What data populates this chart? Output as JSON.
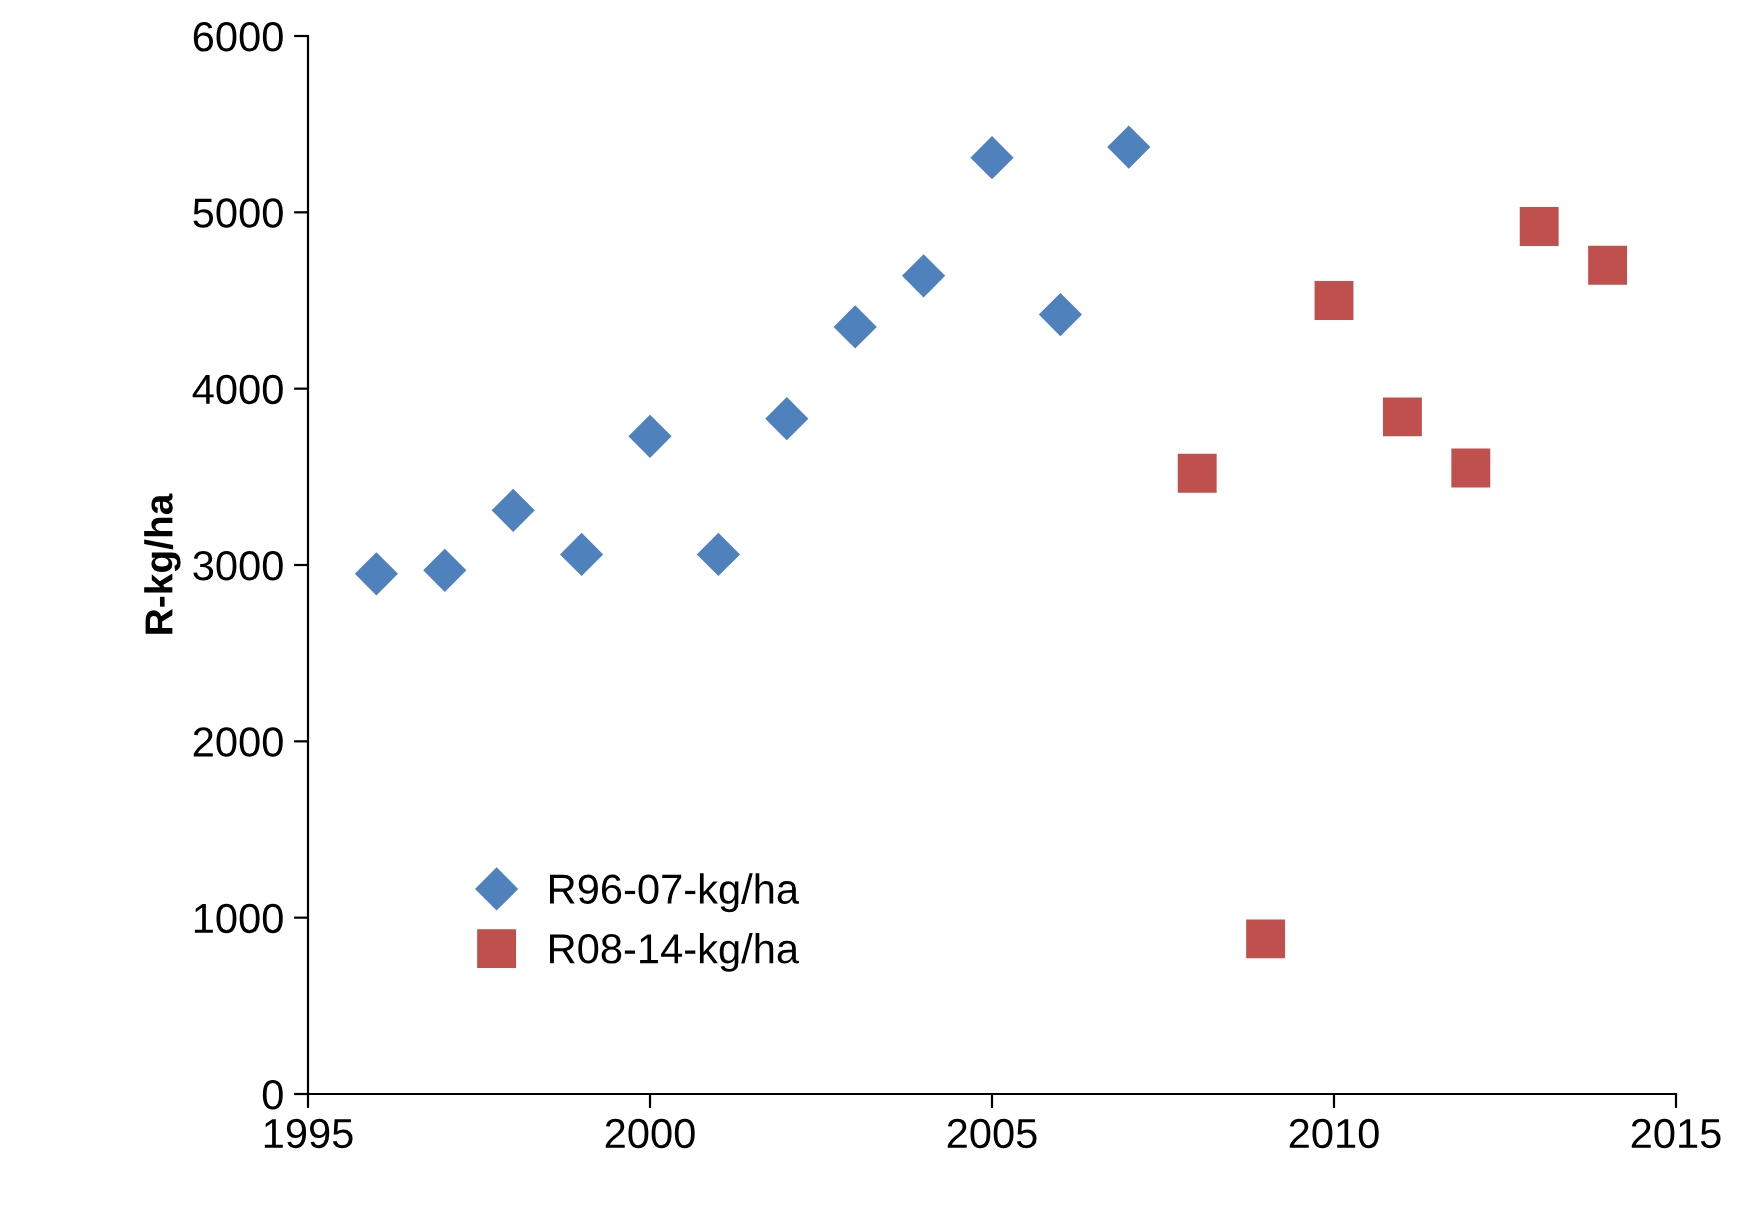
{
  "chart_data": {
    "type": "scatter",
    "ylabel": "R-kg/ha",
    "xlim": [
      1995,
      2015
    ],
    "xticks": [
      1995,
      2000,
      2005,
      2010,
      2015
    ],
    "ylim": [
      0,
      6000
    ],
    "yticks": [
      0,
      1000,
      2000,
      3000,
      4000,
      5000,
      6000
    ],
    "grid": false,
    "legend": "bottom left",
    "series": [
      {
        "name": "R96-07-kg/ha",
        "color": "#4f81bd",
        "marker": "diamond",
        "x": [
          1996,
          1997,
          1998,
          1999,
          2000,
          2001,
          2002,
          2003,
          2004,
          2005,
          2006,
          2007
        ],
        "values": [
          2950,
          2970,
          3310,
          3060,
          3730,
          3060,
          3830,
          4350,
          4640,
          5310,
          4420,
          5370
        ]
      },
      {
        "name": "R08-14-kg/ha",
        "color": "#c0504d",
        "marker": "square",
        "x": [
          2008,
          2009,
          2010,
          2011,
          2012,
          2013,
          2014
        ],
        "values": [
          3520,
          880,
          4500,
          3840,
          3550,
          4920,
          4700
        ]
      }
    ]
  }
}
